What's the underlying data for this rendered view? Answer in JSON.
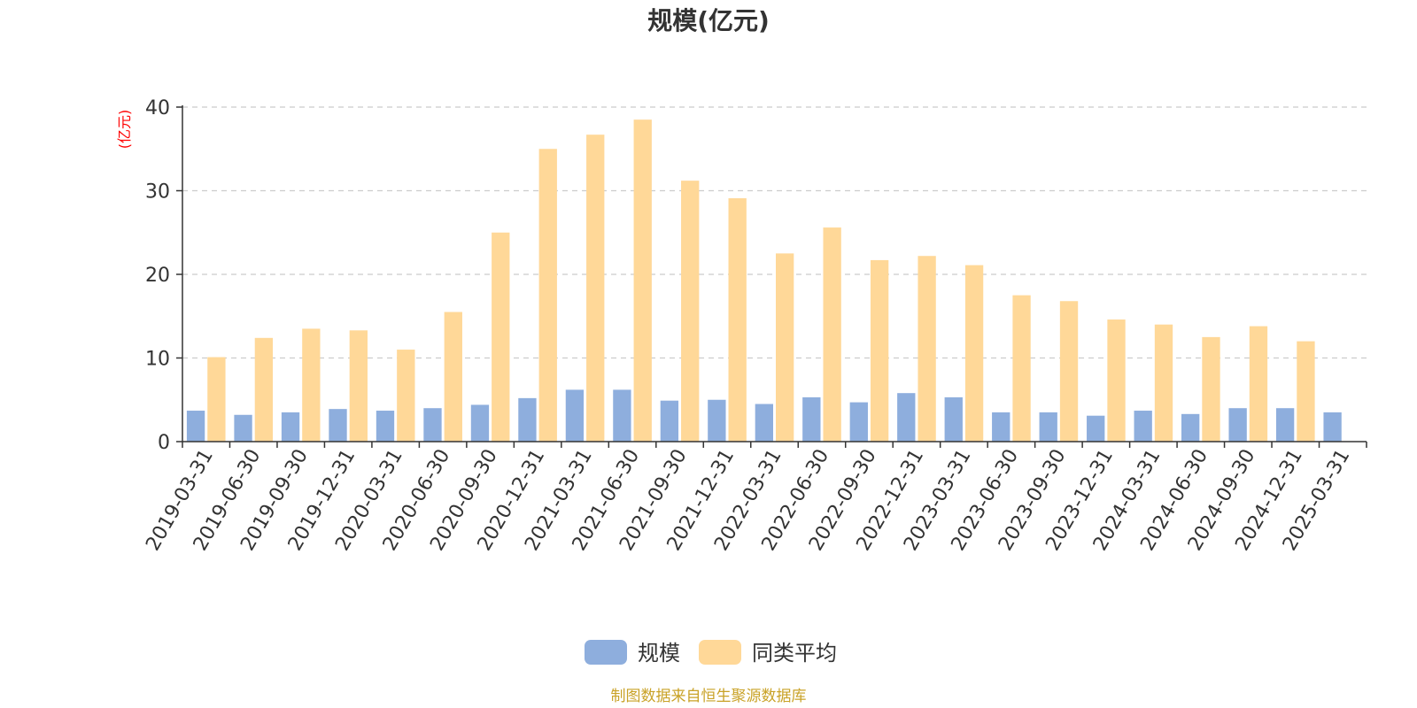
{
  "chart_data": {
    "type": "bar",
    "title": "规模(亿元)",
    "ylabel": "(亿元)",
    "ylim": [
      0,
      40
    ],
    "yticks": [
      0,
      10,
      20,
      30,
      40
    ],
    "grid": true,
    "legend_position": "bottom-center",
    "categories": [
      "2019-03-31",
      "2019-06-30",
      "2019-09-30",
      "2019-12-31",
      "2020-03-31",
      "2020-06-30",
      "2020-09-30",
      "2020-12-31",
      "2021-03-31",
      "2021-06-30",
      "2021-09-30",
      "2021-12-31",
      "2022-03-31",
      "2022-06-30",
      "2022-09-30",
      "2022-12-31",
      "2023-03-31",
      "2023-06-30",
      "2023-09-30",
      "2023-12-31",
      "2024-03-31",
      "2024-06-30",
      "2024-09-30",
      "2024-12-31",
      "2025-03-31"
    ],
    "series": [
      {
        "name": "规模",
        "color": "#8eaedd",
        "values": [
          3.7,
          3.2,
          3.5,
          3.9,
          3.7,
          4.0,
          4.4,
          5.2,
          6.2,
          6.2,
          4.9,
          5.0,
          4.5,
          5.3,
          4.7,
          5.8,
          5.3,
          3.5,
          3.5,
          3.1,
          3.7,
          3.3,
          4.0,
          4.0,
          3.5
        ]
      },
      {
        "name": "同类平均",
        "color": "#ffd898",
        "values": [
          10.1,
          12.4,
          13.5,
          13.3,
          11.0,
          15.5,
          25.0,
          35.0,
          36.7,
          38.5,
          31.2,
          29.1,
          22.5,
          25.6,
          21.7,
          22.2,
          21.1,
          17.5,
          16.8,
          14.6,
          14.0,
          12.5,
          13.8,
          12.0,
          null
        ]
      }
    ]
  },
  "footer": {
    "source": "制图数据来自恒生聚源数据库"
  }
}
